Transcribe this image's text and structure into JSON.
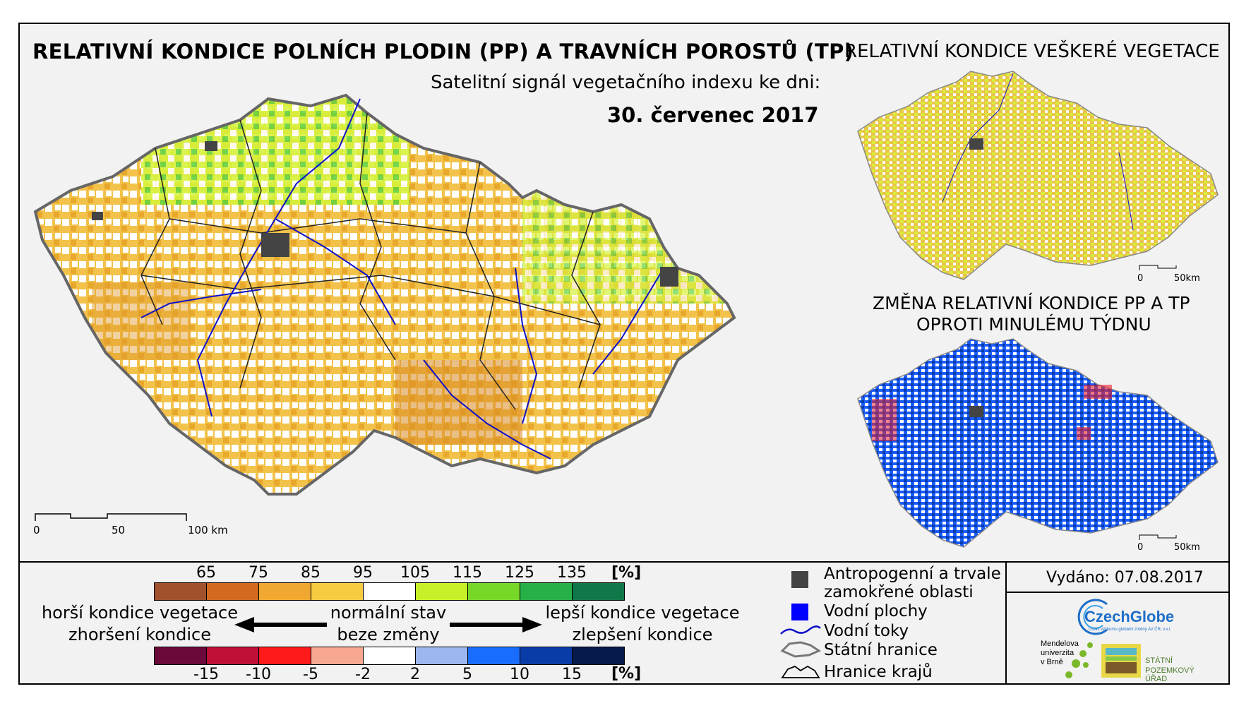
{
  "titles": {
    "main": "RELATIVNÍ KONDICE POLNÍCH PLODIN (PP) A TRAVNÍCH POROSTŮ (TP)",
    "right_top": "RELATIVNÍ KONDICE VEŠKERÉ VEGETACE",
    "subtitle": "Satelitní signál vegetačního indexu ke dni:",
    "date": "30. červenec 2017",
    "change_line1": "ZMĚNA RELATIVNÍ KONDICE PP A TP",
    "change_line2": "OPROTI MINULÉMU TÝDNU"
  },
  "scales": {
    "main": {
      "l0": "0",
      "l1": "50",
      "l2": "100 km"
    },
    "small_top": {
      "l0": "0",
      "l1": "50km"
    },
    "small_bottom": {
      "l0": "0",
      "l1": "50km"
    }
  },
  "legend_condition": {
    "ticks": [
      "65",
      "75",
      "85",
      "95",
      "105",
      "115",
      "125",
      "135"
    ],
    "unit": "[%]",
    "colors": [
      "#a0522d",
      "#d2691e",
      "#f0a830",
      "#f8cc40",
      "#ffffff",
      "#c8f028",
      "#78d828",
      "#28b048",
      "#107848"
    ]
  },
  "legend_change": {
    "ticks": [
      "-15",
      "-10",
      "-5",
      "-2",
      "2",
      "5",
      "10",
      "15"
    ],
    "unit": "[%]",
    "colors": [
      "#6b0a3a",
      "#c0103a",
      "#ff1a1a",
      "#f8a890",
      "#ffffff",
      "#9db8f0",
      "#1a6cff",
      "#0a3ca8",
      "#061a4a"
    ]
  },
  "legend_labels": {
    "worse1": "horší kondice vegetace",
    "worse2": "zhoršení kondice",
    "normal1": "normální stav",
    "normal2": "beze změny",
    "better1": "lepší kondice vegetace",
    "better2": "zlepšení kondice"
  },
  "legend_items": {
    "anthro1": "Antropogenní a trvale",
    "anthro2": "zamokřené oblasti",
    "water": "Vodní plochy",
    "rivers": "Vodní toky",
    "state": "Státní hranice",
    "regions": "Hranice krajů"
  },
  "issued": "Vydáno: 07.08.2017",
  "logos": {
    "czechglobe": "CzechGlobe",
    "czechglobe_sub": "Ústav výzkumu globální změny AV ČR, v.v.i.",
    "mendel1": "Mendelova",
    "mendel2": "univerzita",
    "mendel3": "v Brně",
    "spu1": "STÁTNÍ",
    "spu2": "POZEMKOVÝ ÚŘAD"
  }
}
